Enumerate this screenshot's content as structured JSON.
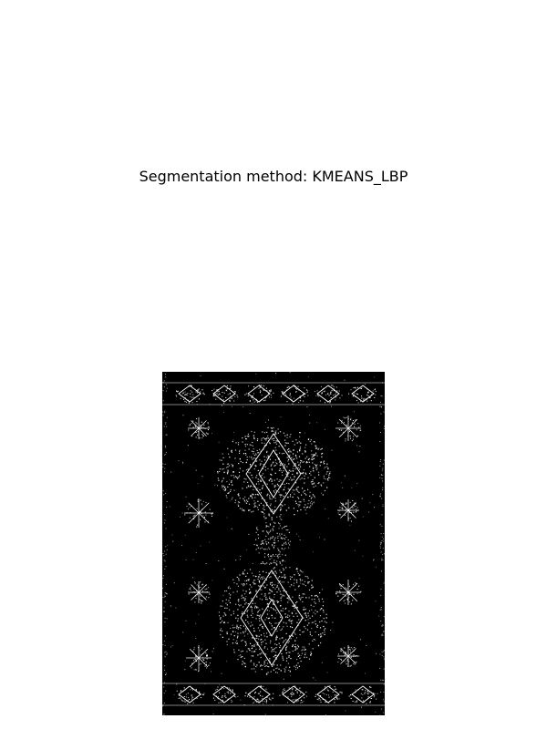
{
  "figure": {
    "title": "Segmentation method: KMEANS_LBP"
  },
  "image": {
    "description_icon": "segmentation-texture-image",
    "background_color": "#000000",
    "foreground_color": "#ffffff"
  }
}
